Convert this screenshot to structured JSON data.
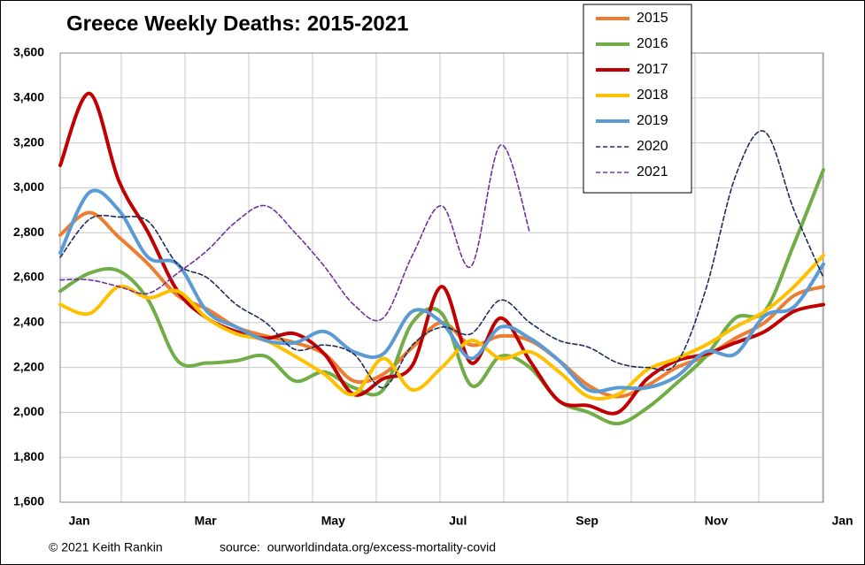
{
  "chart_data": {
    "type": "line",
    "title": "Greece Weekly Deaths: 2015-2021",
    "credit": "© 2021 Keith Rankin",
    "source": "source:  ourworldindata.org/excess-mortality-covid",
    "x": [
      0,
      2,
      4,
      6,
      8,
      10,
      12,
      14,
      16,
      18,
      20,
      22,
      24,
      26,
      28,
      30,
      32,
      34,
      36,
      38,
      40,
      42,
      44,
      46,
      48,
      50,
      52
    ],
    "xlim": [
      0,
      52
    ],
    "xticks": [
      {
        "value": 1.3,
        "label": "Jan"
      },
      {
        "value": 9.9,
        "label": "Mar"
      },
      {
        "value": 18.6,
        "label": "May"
      },
      {
        "value": 27.1,
        "label": "Jul"
      },
      {
        "value": 35.9,
        "label": "Sep"
      },
      {
        "value": 44.7,
        "label": "Nov"
      },
      {
        "value": 53.3,
        "label": "Jan"
      }
    ],
    "ylim": [
      1600,
      3600
    ],
    "yticks": [
      {
        "value": 1600,
        "label": "1,600"
      },
      {
        "value": 1800,
        "label": "1,800"
      },
      {
        "value": 2000,
        "label": "2,000"
      },
      {
        "value": 2200,
        "label": "2,200"
      },
      {
        "value": 2400,
        "label": "2,400"
      },
      {
        "value": 2600,
        "label": "2,600"
      },
      {
        "value": 2800,
        "label": "2,800"
      },
      {
        "value": 3000,
        "label": "3,000"
      },
      {
        "value": 3200,
        "label": "3,200"
      },
      {
        "value": 3400,
        "label": "3,400"
      },
      {
        "value": 3600,
        "label": "3,600"
      }
    ],
    "grid": true,
    "legend": "top-right",
    "series": [
      {
        "name": "2015",
        "color": "#ed7d31",
        "style": "solid",
        "values": [
          2790,
          2890,
          2780,
          2660,
          2520,
          2460,
          2380,
          2340,
          2310,
          2260,
          2140,
          2170,
          2290,
          2400,
          2300,
          2340,
          2320,
          2230,
          2120,
          2070,
          2120,
          2200,
          2250,
          2330,
          2400,
          2520,
          2560
        ]
      },
      {
        "name": "2016",
        "color": "#70ad47",
        "style": "solid",
        "values": [
          2540,
          2620,
          2630,
          2500,
          2230,
          2220,
          2230,
          2250,
          2140,
          2180,
          2110,
          2100,
          2400,
          2440,
          2120,
          2250,
          2200,
          2050,
          2000,
          1950,
          2020,
          2130,
          2250,
          2420,
          2450,
          2750,
          3080
        ]
      },
      {
        "name": "2017",
        "color": "#c00000",
        "style": "solid",
        "values": [
          3100,
          3420,
          3030,
          2800,
          2540,
          2420,
          2360,
          2330,
          2350,
          2260,
          2080,
          2150,
          2210,
          2560,
          2220,
          2420,
          2230,
          2050,
          2030,
          2000,
          2150,
          2230,
          2260,
          2310,
          2360,
          2450,
          2480
        ]
      },
      {
        "name": "2018",
        "color": "#ffc000",
        "style": "solid",
        "values": [
          2480,
          2440,
          2560,
          2510,
          2540,
          2420,
          2350,
          2320,
          2250,
          2170,
          2080,
          2240,
          2100,
          2200,
          2320,
          2240,
          2270,
          2180,
          2070,
          2080,
          2190,
          2240,
          2300,
          2380,
          2450,
          2560,
          2700
        ]
      },
      {
        "name": "2019",
        "color": "#5b9bd5",
        "style": "solid",
        "values": [
          2710,
          2980,
          2900,
          2690,
          2660,
          2450,
          2380,
          2320,
          2310,
          2360,
          2270,
          2260,
          2450,
          2400,
          2240,
          2380,
          2330,
          2230,
          2100,
          2110,
          2110,
          2160,
          2270,
          2260,
          2430,
          2470,
          2660
        ]
      },
      {
        "name": "2020",
        "color": "#1f2d5a",
        "style": "dashed",
        "values": [
          2690,
          2860,
          2870,
          2850,
          2660,
          2600,
          2480,
          2400,
          2280,
          2300,
          2260,
          2110,
          2300,
          2380,
          2350,
          2500,
          2400,
          2320,
          2290,
          2220,
          2200,
          2220,
          2550,
          3050,
          3250,
          2900,
          2600
        ]
      },
      {
        "name": "2021",
        "color": "#7030a0",
        "style": "dashed",
        "values": [
          2590,
          2590,
          2560,
          2530,
          2620,
          2720,
          2850,
          2920,
          2800,
          2650,
          2480,
          2420,
          2700,
          2920,
          2650,
          3190,
          2800,
          null,
          null,
          null,
          null,
          null,
          null,
          null,
          null,
          null,
          null
        ]
      }
    ]
  }
}
